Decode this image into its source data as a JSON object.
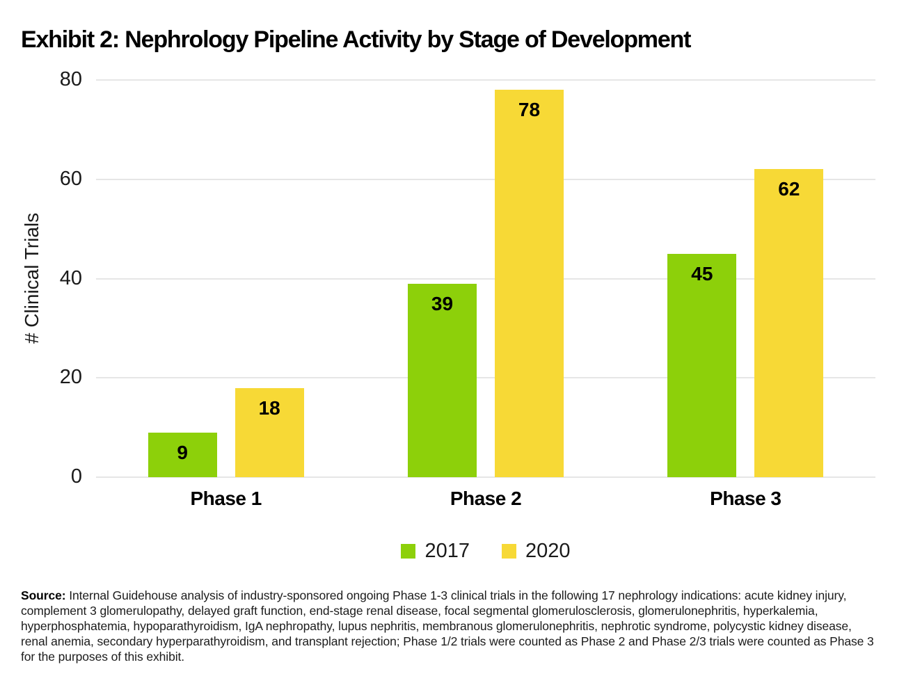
{
  "header": {
    "title": "Exhibit 2: Nephrology Pipeline Activity by Stage of Development"
  },
  "chart_data": {
    "type": "bar",
    "title": "Exhibit 2: Nephrology Pipeline Activity by Stage of Development",
    "categories": [
      "Phase 1",
      "Phase 2",
      "Phase 3"
    ],
    "series": [
      {
        "name": "2017",
        "color": "#8dd00a",
        "values": [
          9,
          39,
          45
        ]
      },
      {
        "name": "2020",
        "color": "#f7d936",
        "values": [
          18,
          78,
          62
        ]
      }
    ],
    "xlabel": "",
    "ylabel": "# Clinical Trials",
    "yticks": [
      0,
      20,
      40,
      60,
      80
    ],
    "ylim": [
      0,
      80
    ],
    "grid": "horizontal",
    "gridline_color": "#e6e6e6",
    "value_labels": "inside-top",
    "value_label_color": "#000000",
    "legend_position": "bottom"
  },
  "source": {
    "label": "Source:",
    "text": " Internal Guidehouse analysis of industry-sponsored ongoing Phase 1-3 clinical trials in the following 17 nephrology indications: acute kidney injury, complement 3 glomerulopathy, delayed graft function, end-stage renal disease, focal segmental glomerulosclerosis, glomerulonephritis, hyperkalemia, hyperphosphatemia, hypoparathyroidism, IgA nephropathy, lupus nephritis, membranous glomerulonephritis, nephrotic syndrome, polycystic kidney disease, renal anemia, secondary hyperparathyroidism, and transplant rejection; Phase 1/2 trials were counted as Phase 2 and Phase 2/3 trials were counted as Phase 3 for the purposes of this exhibit."
  }
}
